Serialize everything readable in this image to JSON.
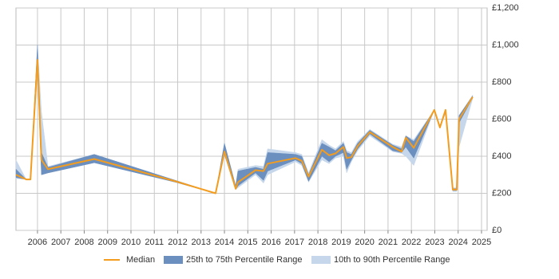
{
  "chart_data": {
    "type": "line",
    "x": [
      2005.08,
      2005.52,
      2005.7,
      2006.0,
      2006.17,
      2006.45,
      2008.43,
      2011.9,
      2013.62,
      2014.0,
      2014.48,
      2014.58,
      2015.33,
      2015.67,
      2015.85,
      2017.04,
      2017.31,
      2017.6,
      2018.17,
      2018.48,
      2018.75,
      2019.09,
      2019.23,
      2019.43,
      2019.7,
      2020.22,
      2021.2,
      2021.58,
      2021.76,
      2022.1,
      2022.98,
      2023.22,
      2023.46,
      2023.77,
      2023.94,
      2024.04,
      2024.62
    ],
    "series": [
      {
        "name": "10th to 90th Percentile Range",
        "color": "#c6d7eb",
        "kind": "band",
        "lower": [
          280,
          275,
          275,
          850,
          300,
          310,
          365,
          260,
          200,
          410,
          220,
          230,
          300,
          255,
          300,
          370,
          350,
          260,
          380,
          360,
          390,
          400,
          310,
          370,
          430,
          510,
          425,
          415,
          400,
          350,
          650,
          555,
          630,
          210,
          210,
          450,
          710
        ],
        "upper": [
          380,
          275,
          275,
          1000,
          640,
          345,
          410,
          270,
          200,
          470,
          240,
          330,
          350,
          345,
          440,
          420,
          410,
          310,
          490,
          460,
          440,
          480,
          430,
          420,
          480,
          545,
          465,
          450,
          510,
          490,
          650,
          555,
          650,
          230,
          230,
          620,
          730
        ]
      },
      {
        "name": "25th to 75th Percentile Range",
        "color": "#6b8fbf",
        "kind": "band",
        "lower": [
          285,
          275,
          275,
          880,
          300,
          310,
          365,
          260,
          200,
          410,
          220,
          240,
          310,
          270,
          320,
          380,
          360,
          265,
          400,
          370,
          400,
          420,
          330,
          380,
          440,
          520,
          430,
          420,
          450,
          390,
          650,
          555,
          640,
          215,
          215,
          580,
          715
        ],
        "upper": [
          330,
          275,
          275,
          1000,
          420,
          340,
          410,
          270,
          200,
          470,
          240,
          320,
          340,
          330,
          420,
          410,
          400,
          300,
          470,
          450,
          430,
          470,
          420,
          410,
          470,
          540,
          460,
          440,
          510,
          480,
          650,
          555,
          650,
          225,
          225,
          620,
          725
        ]
      },
      {
        "name": "Median",
        "color": "#f39c1e",
        "kind": "line",
        "values": [
          300,
          275,
          275,
          920,
          380,
          330,
          385,
          265,
          200,
          425,
          225,
          260,
          325,
          320,
          360,
          390,
          375,
          290,
          435,
          405,
          415,
          450,
          390,
          395,
          455,
          530,
          450,
          425,
          500,
          445,
          650,
          555,
          650,
          220,
          220,
          600,
          720
        ]
      }
    ],
    "legend_order": [
      2,
      1,
      0
    ],
    "xlim": [
      2005.08,
      2025.24
    ],
    "xticks": [
      2006,
      2007,
      2008,
      2009,
      2010,
      2011,
      2012,
      2013,
      2014,
      2015,
      2016,
      2017,
      2018,
      2019,
      2020,
      2021,
      2022,
      2023,
      2024,
      2025
    ],
    "ylim": [
      0,
      1200
    ],
    "yticks": [
      {
        "value": 0,
        "label": "£0"
      },
      {
        "value": 200,
        "label": "£200"
      },
      {
        "value": 400,
        "label": "£400"
      },
      {
        "value": 600,
        "label": "£600"
      },
      {
        "value": 800,
        "label": "£800"
      },
      {
        "value": 1000,
        "label": "£1,000"
      },
      {
        "value": 1200,
        "label": "£1,200"
      }
    ],
    "grid": true
  }
}
